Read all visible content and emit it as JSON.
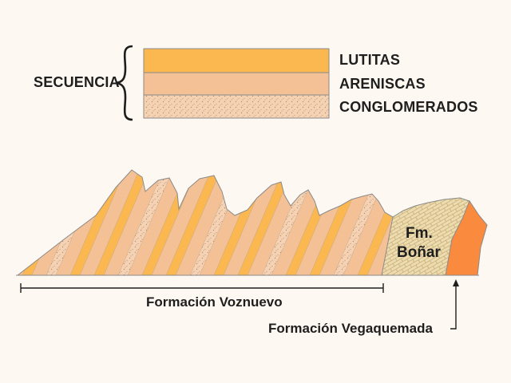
{
  "legend": {
    "sequence_label": "SECUENCIA",
    "layers": [
      {
        "label": "LUTITAS",
        "color": "#fbb750",
        "pattern": "solid"
      },
      {
        "label": "ARENISCAS",
        "color": "#f4c197",
        "pattern": "solid"
      },
      {
        "label": "CONGLOMERADOS",
        "color": "#f5d2b3",
        "pattern": "dotted"
      }
    ]
  },
  "cross_section": {
    "formations": [
      {
        "name": "Formación Voznuevo"
      },
      {
        "name": "Fm. Boñar",
        "line1": "Fm.",
        "line2": "Boñar",
        "color": "#ecdcb0",
        "pattern": "brick"
      },
      {
        "name": "Formación Vegaquemada",
        "color": "#f98a3e"
      }
    ]
  },
  "colors": {
    "background": "#fdf8f1",
    "outline": "#6a6a6a"
  }
}
